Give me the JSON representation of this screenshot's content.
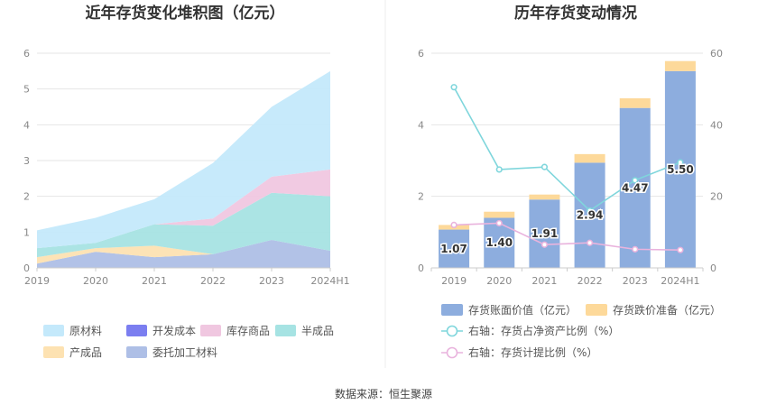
{
  "footer": "数据来源：恒生聚源",
  "chart_data": [
    {
      "type": "area",
      "title": "近年存货变化堆积图（亿元）",
      "x": [
        "2019",
        "2020",
        "2021",
        "2022",
        "2023",
        "2024H1"
      ],
      "ylim": [
        0,
        6
      ],
      "yticks": [
        "0",
        "1",
        "2",
        "3",
        "4",
        "5",
        "6"
      ],
      "stacked": true,
      "grid": true,
      "legend_position": "bottom",
      "series": [
        {
          "name": "委托加工材料",
          "color": "#aebfe6",
          "values": [
            0.12,
            0.45,
            0.3,
            0.38,
            0.78,
            0.48
          ]
        },
        {
          "name": "产成品",
          "color": "#fde2b2",
          "values": [
            0.18,
            0.1,
            0.32,
            0.0,
            0.0,
            0.0
          ]
        },
        {
          "name": "半成品",
          "color": "#a6e3e3",
          "values": [
            0.25,
            0.15,
            0.6,
            0.8,
            1.32,
            1.52
          ]
        },
        {
          "name": "开发成本",
          "color": "#7b7ef0",
          "values": [
            0,
            0,
            0,
            0,
            0,
            0
          ]
        },
        {
          "name": "库存商品",
          "color": "#f0c7e0",
          "values": [
            0.0,
            0.0,
            0.0,
            0.2,
            0.45,
            0.75
          ]
        },
        {
          "name": "原材料",
          "color": "#c4e9fb",
          "values": [
            0.5,
            0.7,
            0.7,
            1.55,
            1.95,
            2.75
          ]
        }
      ],
      "legend_order": [
        "原材料",
        "开发成本",
        "库存商品",
        "半成品",
        "产成品",
        "委托加工材料"
      ]
    },
    {
      "type": "bar",
      "title": "历年存货变动情况",
      "categories": [
        "2019",
        "2020",
        "2021",
        "2022",
        "2023",
        "2024H1"
      ],
      "ylim_left": [
        0,
        6
      ],
      "yticks_left": [
        "0",
        "2",
        "4",
        "6"
      ],
      "ylim_right": [
        0,
        60
      ],
      "yticks_right": [
        "0",
        "20",
        "40",
        "60"
      ],
      "grid": true,
      "legend_position": "bottom",
      "series": [
        {
          "name": "存货账面价值（亿元）",
          "kind": "bar",
          "axis": "left",
          "color": "#8dadde",
          "values": [
            1.07,
            1.4,
            1.91,
            2.94,
            4.47,
            5.5
          ],
          "labels": [
            "1.07",
            "1.40",
            "1.91",
            "2.94",
            "4.47",
            "5.50"
          ]
        },
        {
          "name": "存货跌价准备（亿元）",
          "kind": "bar",
          "axis": "left",
          "color": "#fdd99a",
          "values": [
            0.13,
            0.17,
            0.14,
            0.24,
            0.27,
            0.28
          ]
        },
        {
          "name": "右轴：存货占净资产比例（%）",
          "kind": "line",
          "axis": "right",
          "color": "#7fd6dc",
          "values": [
            50.5,
            27.5,
            28.2,
            16.0,
            24.5,
            29.5
          ]
        },
        {
          "name": "右轴：存货计提比例（%）",
          "kind": "line",
          "axis": "right",
          "color": "#e9b3dd",
          "values": [
            12.0,
            12.5,
            6.5,
            7.0,
            5.2,
            5.0
          ]
        }
      ]
    }
  ]
}
